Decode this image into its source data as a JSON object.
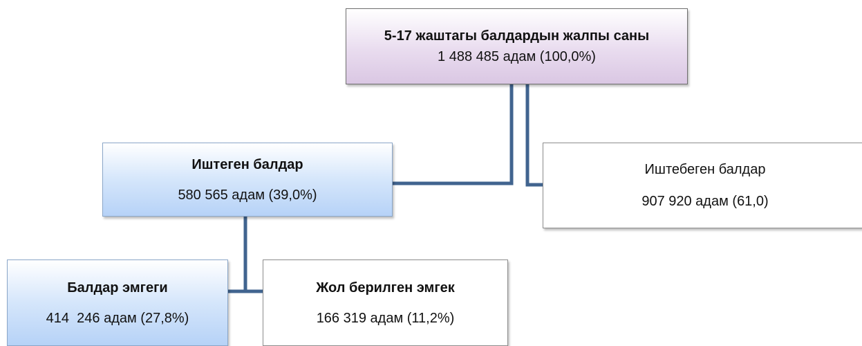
{
  "nodes": [
    {
      "label": "5-17 жаштагы балдардын жалпы саны",
      "value": "1 488 485 адам (100,0%)"
    },
    {
      "label": "Иштеген балдар",
      "value": "580 565 адам (39,0%)"
    },
    {
      "label": "Иштебеген балдар",
      "value": "907 920 адам (61,0)"
    },
    {
      "label": "Балдар эмгеги",
      "value": "414  246 адам (27,8%)"
    },
    {
      "label": "Жол берилген эмгек",
      "value": "166 319 адам (11,2%)"
    }
  ]
}
